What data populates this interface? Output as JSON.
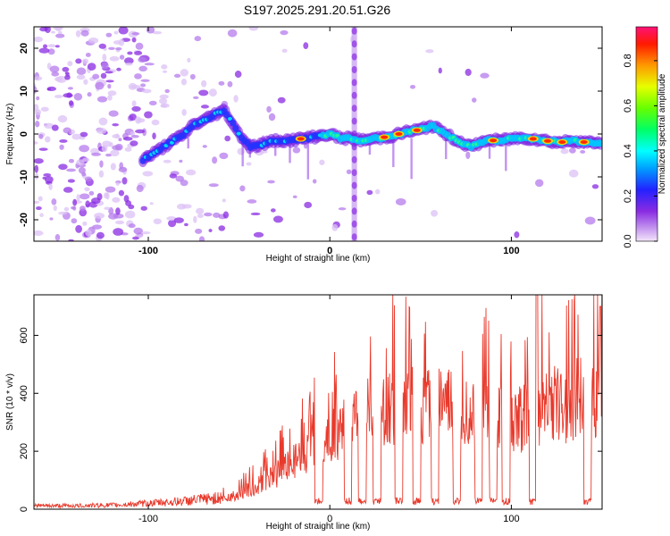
{
  "title": "S197.2025.291.20.51.G26",
  "chart_data": [
    {
      "type": "heatmap",
      "xlabel": "Height of straight line (km)",
      "ylabel": "Frequency (Hz)",
      "xlim": [
        -163,
        150
      ],
      "ylim": [
        -25,
        25
      ],
      "x_ticks": [
        -100,
        0,
        100
      ],
      "x_tick_labels": [
        "-100",
        "0",
        "100"
      ],
      "y_ticks": [
        -20,
        -10,
        0,
        10,
        20
      ],
      "y_tick_labels": [
        "-20",
        "-10",
        "0",
        "10",
        "20"
      ],
      "colorbar": {
        "label": "Normalized spectral amplitude",
        "range": [
          0,
          0.95
        ],
        "ticks": [
          0,
          0.2,
          0.4,
          0.6,
          0.8
        ],
        "tick_labels": [
          "0.0",
          "0.2",
          "0.4",
          "0.6",
          "0.8"
        ]
      },
      "ridge_track": {
        "x": [
          -103,
          -95,
          -88,
          -80,
          -76,
          -70,
          -64,
          -58,
          -50,
          -44,
          -38,
          -30,
          -22,
          -14,
          -6,
          0,
          6,
          10,
          18,
          26,
          34,
          42,
          50,
          56,
          62,
          70,
          78,
          86,
          94,
          102,
          110,
          118,
          126,
          134,
          142,
          150
        ],
        "y": [
          -6,
          -4,
          -2,
          0,
          2,
          3,
          4.5,
          5.5,
          0,
          -3,
          -2.5,
          -1.5,
          -1.5,
          -1,
          -0.5,
          0,
          -1,
          -1,
          -1.5,
          -1,
          -0.5,
          0.5,
          1,
          2,
          0.5,
          -1.5,
          -3,
          -1.5,
          -1.5,
          -1,
          -1,
          -1.5,
          -2,
          -1.5,
          -2,
          -2
        ]
      }
    },
    {
      "type": "line",
      "xlabel": "Height of straight line (km)",
      "ylabel": "SNR (10 * v/v)",
      "xlim": [
        -163,
        150
      ],
      "ylim": [
        0,
        740
      ],
      "x_ticks": [
        -100,
        0,
        100
      ],
      "x_tick_labels": [
        "-100",
        "0",
        "100"
      ],
      "y_ticks": [
        0,
        200,
        400,
        600
      ],
      "y_tick_labels": [
        "0",
        "200",
        "400",
        "600"
      ],
      "envelope": {
        "x": [
          -163,
          -140,
          -120,
          -100,
          -80,
          -60,
          -50,
          -40,
          -30,
          -20,
          -10,
          0,
          10,
          20,
          30,
          40,
          50,
          60,
          70,
          80,
          90,
          100,
          110,
          120,
          130,
          140,
          150
        ],
        "y": [
          12,
          12,
          14,
          20,
          28,
          40,
          55,
          90,
          130,
          180,
          230,
          280,
          320,
          360,
          380,
          400,
          390,
          400,
          380,
          380,
          360,
          320,
          380,
          400,
          410,
          430,
          450
        ]
      },
      "dropouts_x": [
        -6,
        10,
        18,
        26,
        38,
        48,
        58,
        70,
        82,
        90,
        97,
        112,
        142
      ],
      "peaks": [
        {
          "x": 114,
          "y": 740
        },
        {
          "x": 149,
          "y": 700
        }
      ],
      "color": "#e8392b"
    }
  ]
}
